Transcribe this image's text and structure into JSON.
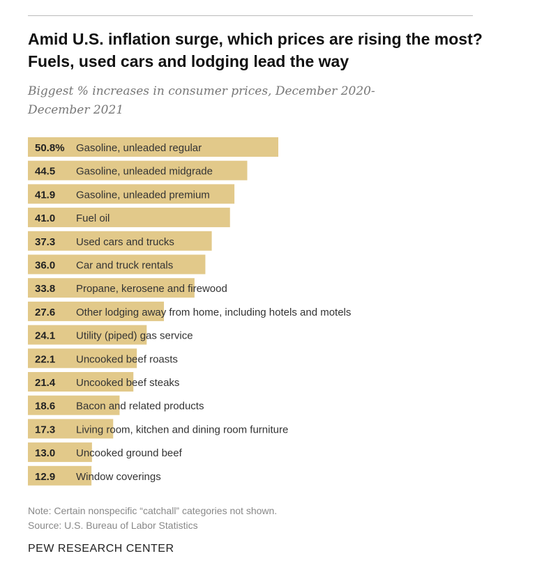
{
  "title": "Amid U.S. inflation surge, which prices are rising the most? Fuels, used cars and lodging lead the way",
  "subtitle": "Biggest % increases in consumer prices, December 2020-December 2021",
  "note": "Note: Certain nonspecific “catchall” categories not shown.",
  "source": "Source: U.S. Bureau of Labor Statistics",
  "brand": "PEW RESEARCH CENTER",
  "chart_data": {
    "type": "bar",
    "orientation": "horizontal",
    "bar_color": "#e2c98a",
    "categories": [
      "Gasoline, unleaded regular",
      "Gasoline, unleaded midgrade",
      "Gasoline, unleaded premium",
      "Fuel oil",
      "Used cars and trucks",
      "Car and truck rentals",
      "Propane, kerosene and firewood",
      "Other lodging away from home, including hotels and motels",
      "Utility (piped) gas service",
      "Uncooked beef roasts",
      "Uncooked beef steaks",
      "Bacon and related products",
      "Living room, kitchen and dining room furniture",
      "Uncooked ground beef",
      "Window coverings"
    ],
    "values": [
      50.8,
      44.5,
      41.9,
      41.0,
      37.3,
      36.0,
      33.8,
      27.6,
      24.1,
      22.1,
      21.4,
      18.6,
      17.3,
      13.0,
      12.9
    ],
    "value_labels": [
      "50.8%",
      "44.5",
      "41.9",
      "41.0",
      "37.3",
      "36.0",
      "33.8",
      "27.6",
      "24.1",
      "22.1",
      "21.4",
      "18.6",
      "17.3",
      "13.0",
      "12.9"
    ],
    "xlim": [
      0,
      50.8
    ],
    "grid": false
  }
}
